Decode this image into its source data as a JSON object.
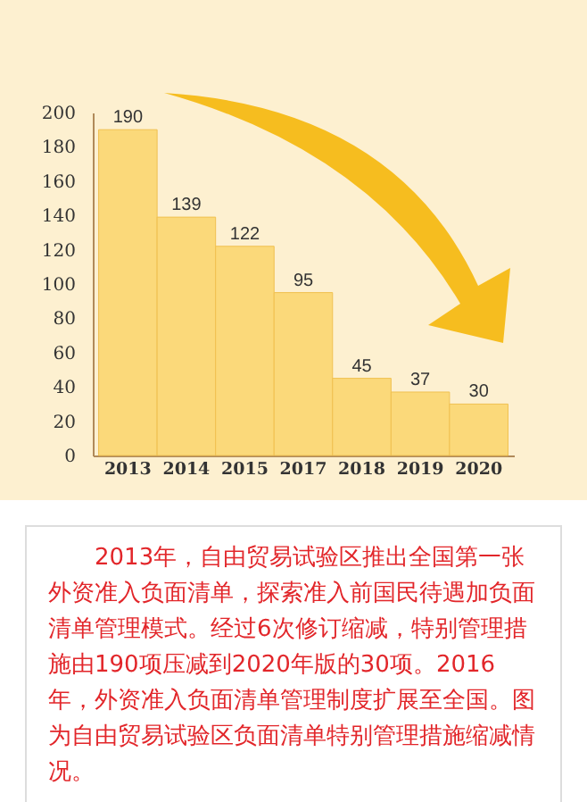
{
  "chart_data": {
    "type": "bar",
    "categories": [
      "2013",
      "2014",
      "2015",
      "2017",
      "2018",
      "2019",
      "2020"
    ],
    "values": [
      190,
      139,
      122,
      95,
      45,
      37,
      30
    ],
    "color": "#fbd97a",
    "data_labels": true,
    "ylim": [
      0,
      200
    ],
    "yticks": [
      0,
      20,
      40,
      60,
      80,
      100,
      120,
      140,
      160,
      180,
      200
    ],
    "grid": false,
    "annotations": [
      "2013年，自由贸易试验区推出全国第一张外资准入负面清单，探索准入前国民待遇加负面清单管理模式。经过6次修订缩减，特别管理措施由190项压减到2020年版的30项。2016年，外资准入负面清单管理制度扩展至全国。图为自由贸易试验区负面清单特别管理措施缩减情况。"
    ]
  }
}
